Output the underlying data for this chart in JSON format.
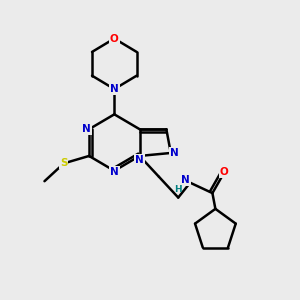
{
  "bg_color": "#ebebeb",
  "atom_colors": {
    "C": "#000000",
    "N": "#0000cc",
    "O": "#ff0000",
    "S": "#cccc00",
    "H": "#008080"
  },
  "line_color": "#000000",
  "line_width": 1.8
}
